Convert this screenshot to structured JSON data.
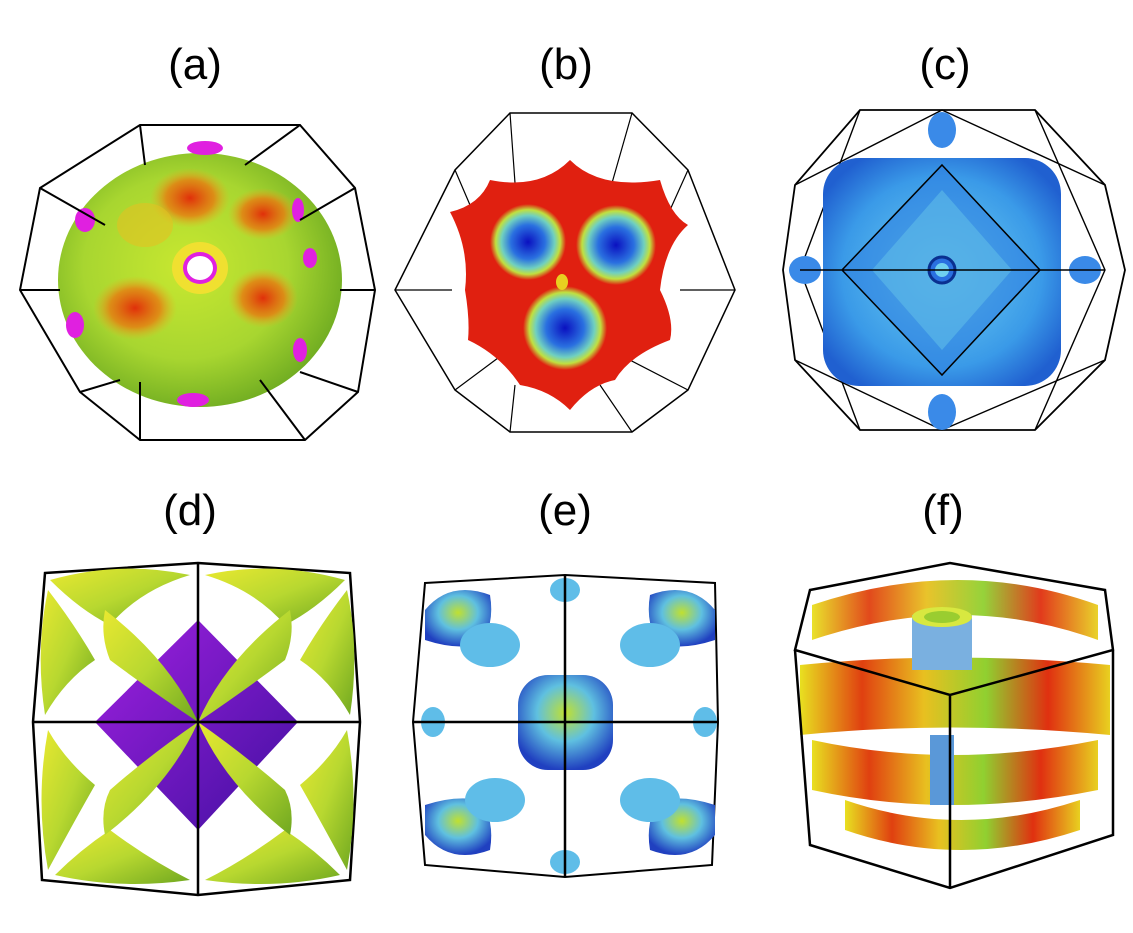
{
  "panels": [
    {
      "label": "(a)",
      "description_icon": "fermi-surface-sphere-truncated-octahedron"
    },
    {
      "label": "(b)",
      "description_icon": "fermi-surface-star-truncated-octahedron"
    },
    {
      "label": "(c)",
      "description_icon": "fermi-surface-rounded-cube-truncated-octahedron"
    },
    {
      "label": "(d)",
      "description_icon": "fermi-surface-octahedron-cube"
    },
    {
      "label": "(e)",
      "description_icon": "fermi-surface-pockets-cube"
    },
    {
      "label": "(f)",
      "description_icon": "fermi-surface-sheets-hexagonal-prism"
    }
  ],
  "colors": {
    "red": "#e0200a",
    "yellow": "#f0f020",
    "green": "#9ad62a",
    "blue": "#1030d0",
    "cyan": "#6fd0f0",
    "magenta": "#e020e0",
    "purple": "#7a20d0",
    "frame": "#000000"
  }
}
